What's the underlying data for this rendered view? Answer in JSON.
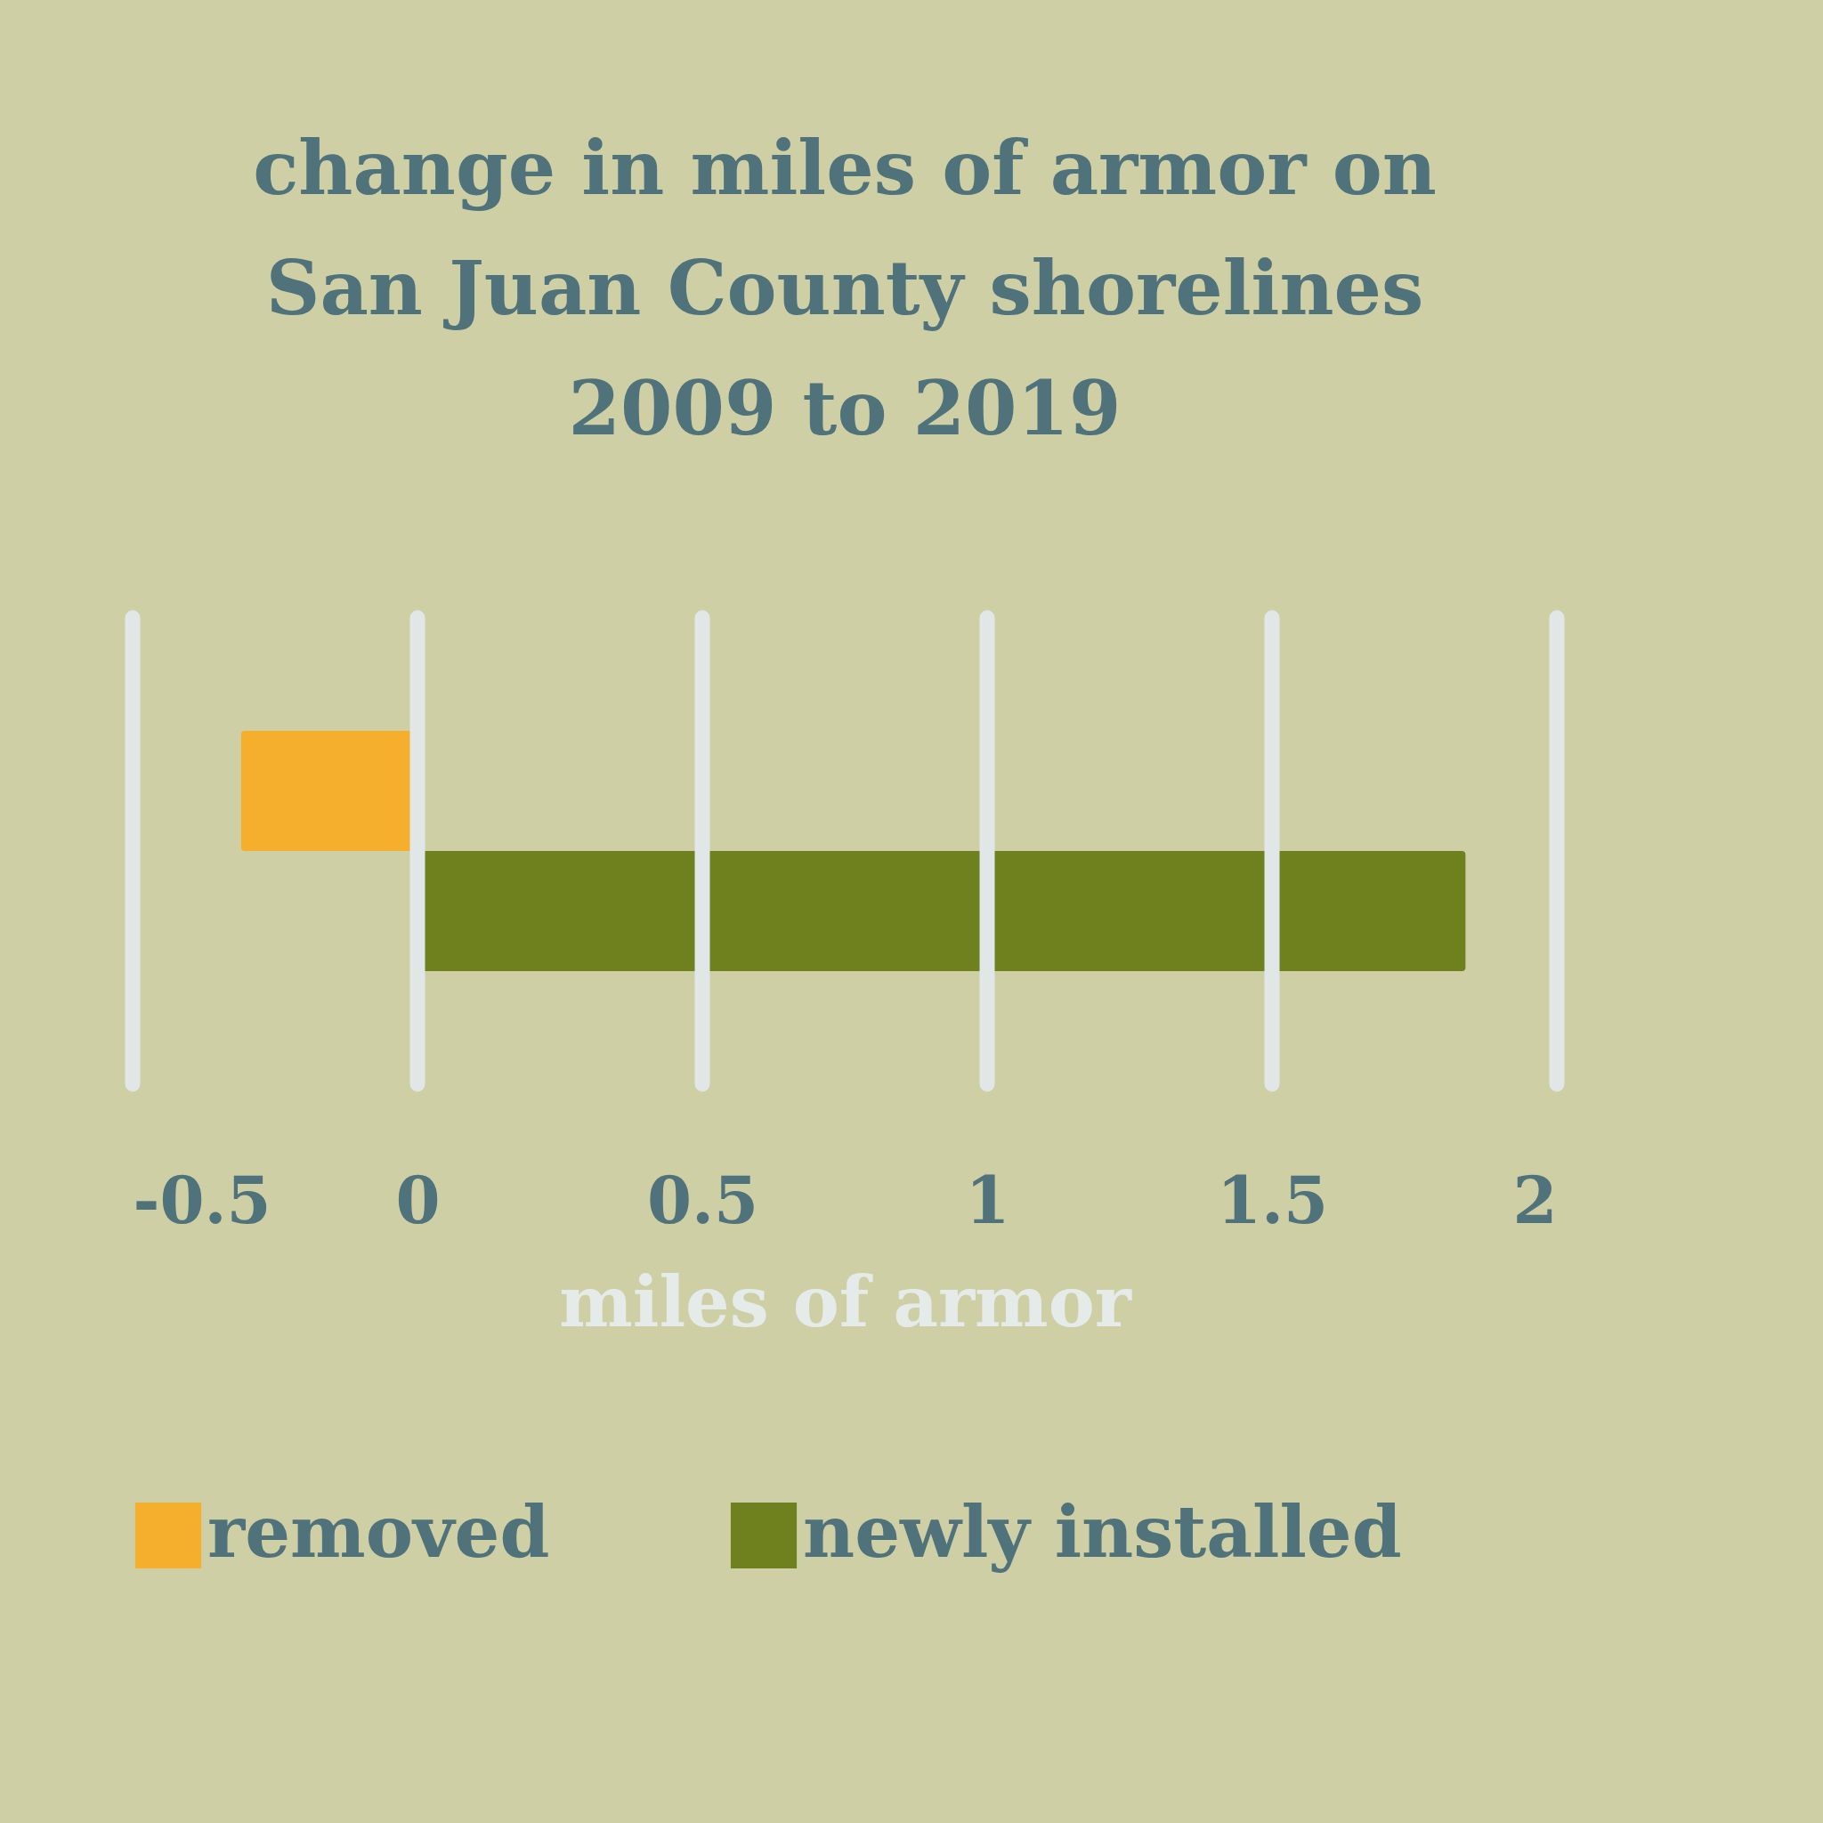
{
  "chart_data": {
    "type": "bar",
    "orientation": "horizontal",
    "title": [
      "change in miles of armor on",
      "San Juan County shorelines",
      "2009 to 2019"
    ],
    "xlabel": "miles of armor",
    "categories": [
      null,
      null
    ],
    "series": [
      {
        "name": "removed",
        "color": "#f6ae2d",
        "values": [
          -0.31,
          null
        ]
      },
      {
        "name": "newly installed",
        "color": "#6f801f",
        "values": [
          null,
          1.84
        ]
      }
    ],
    "xlim": [
      -0.5,
      2
    ],
    "xticks": [
      -0.5,
      0,
      0.5,
      1,
      1.5,
      2
    ],
    "grid": "x",
    "legend": "bottom"
  }
}
